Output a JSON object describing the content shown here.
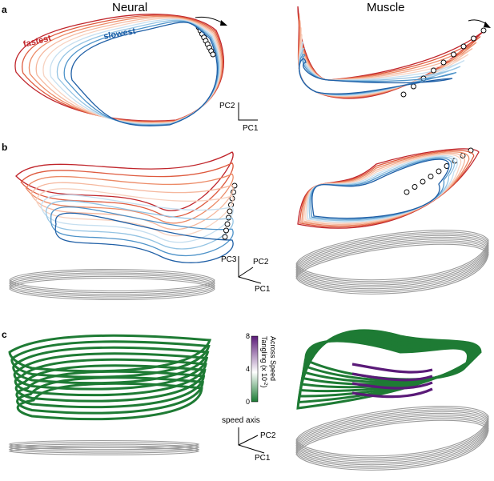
{
  "columns": {
    "left_title": "Neural",
    "right_title": "Muscle"
  },
  "panels": {
    "a": "a",
    "b": "b",
    "c": "c"
  },
  "annotations": {
    "fastest": "fastest",
    "slowest": "slowest",
    "speed_axis": "speed axis"
  },
  "axes": {
    "pc1": "PC1",
    "pc2": "PC2",
    "pc3": "PC3"
  },
  "colorbar": {
    "title_line1": "Across Speed",
    "title_line2": "Tangling (x 10",
    "title_exp": "-2",
    "title_close": ")",
    "ticks": [
      "0",
      "4",
      "8"
    ],
    "min": 0,
    "max": 8,
    "low_color": "#1a7a33",
    "mid_color": "#ffffff",
    "high_color": "#5a1a78"
  },
  "speed_palette": [
    "#c0252b",
    "#de5a3e",
    "#ec8a66",
    "#f5b79d",
    "#f7d2c0",
    "#c6dff0",
    "#93c3e3",
    "#4e93c9",
    "#1f5fa6"
  ],
  "colors": {
    "gray": "#9a9a9a",
    "green": "#1e7b34",
    "purple": "#5a1a78"
  }
}
